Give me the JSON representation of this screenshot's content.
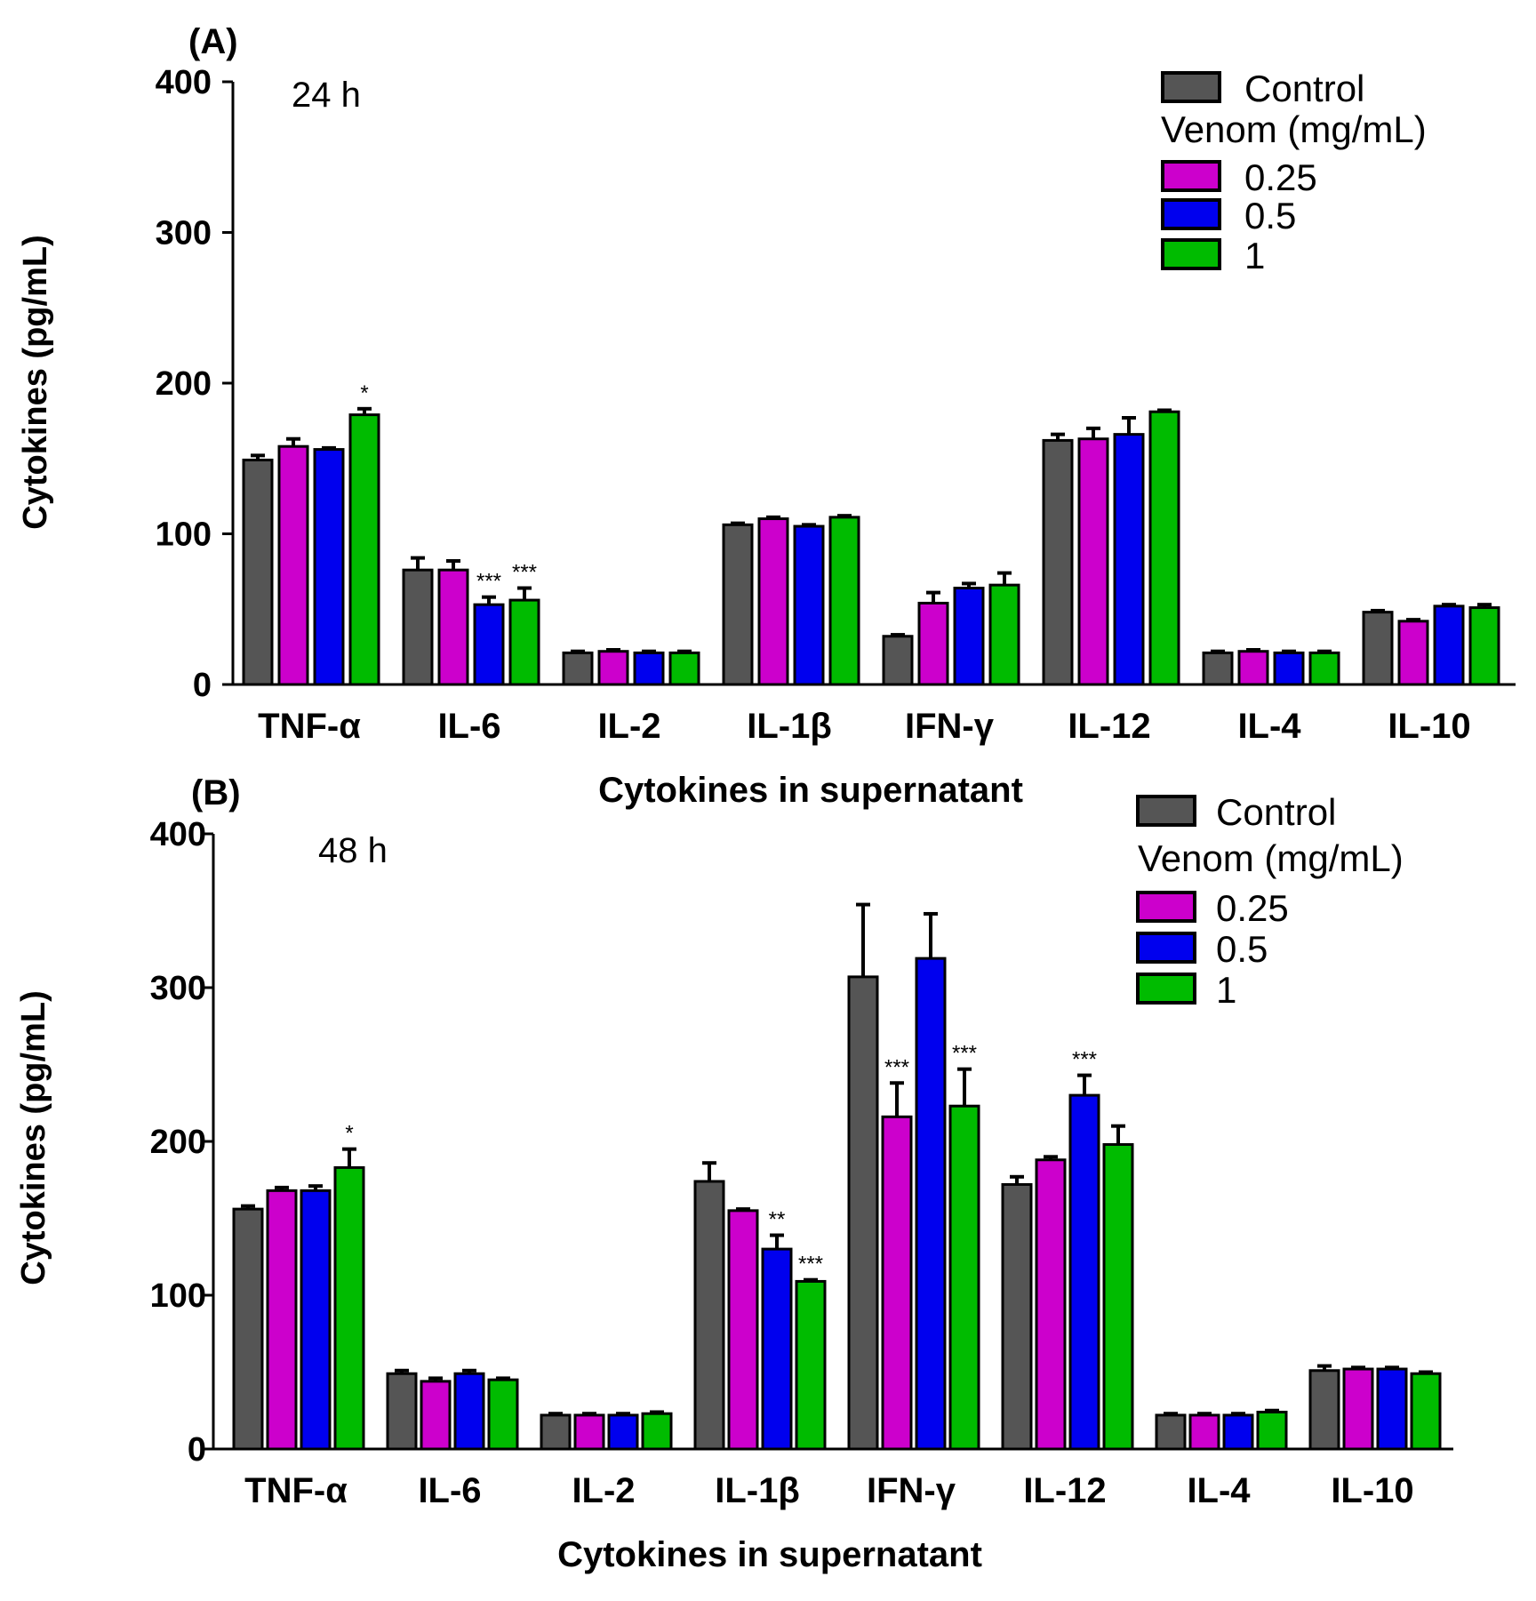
{
  "chart_data": [
    {
      "type": "bar",
      "panel_label": "(A)",
      "time_label": "24 h",
      "xlabel": "Cytokines in supernatant",
      "ylabel": "Cytokines (pg/mL)",
      "ylim": [
        0,
        400
      ],
      "yticks": [
        "0",
        "100",
        "200",
        "300",
        "400"
      ],
      "categories": [
        "TNF-α",
        "IL-6",
        "IL-2",
        "IL-1β",
        "IFN-γ",
        "IL-12",
        "IL-4",
        "IL-10"
      ],
      "series": [
        {
          "name": "Control",
          "color": "#555555",
          "values": [
            149,
            76,
            21,
            106,
            32,
            162,
            21,
            48
          ],
          "errors": [
            3,
            8,
            1,
            1,
            1,
            4,
            1,
            1
          ]
        },
        {
          "name": "0.25",
          "color": "#cc00cc",
          "values": [
            158,
            76,
            22,
            110,
            54,
            163,
            22,
            42
          ],
          "errors": [
            5,
            6,
            1,
            1,
            7,
            7,
            1,
            1
          ]
        },
        {
          "name": "0.5",
          "color": "#0000ee",
          "values": [
            156,
            53,
            21,
            105,
            64,
            166,
            21,
            52
          ],
          "errors": [
            1,
            5,
            1,
            1,
            3,
            11,
            1,
            1
          ]
        },
        {
          "name": "1",
          "color": "#00bb00",
          "values": [
            179,
            56,
            21,
            111,
            66,
            181,
            21,
            51
          ],
          "errors": [
            4,
            8,
            1,
            1,
            8,
            1,
            1,
            2
          ]
        }
      ],
      "significance": [
        {
          "category": "TNF-α",
          "series": "1",
          "mark": "*"
        },
        {
          "category": "IL-6",
          "series": "0.5",
          "mark": "***"
        },
        {
          "category": "IL-6",
          "series": "1",
          "mark": "***"
        }
      ],
      "legend": {
        "control": "Control",
        "group_title": "Venom (mg/mL)",
        "items": [
          "0.25",
          "0.5",
          "1"
        ],
        "position": "top-right"
      }
    },
    {
      "type": "bar",
      "panel_label": "(B)",
      "time_label": "48 h",
      "xlabel": "Cytokines in supernatant",
      "ylabel": "Cytokines (pg/mL)",
      "ylim": [
        0,
        400
      ],
      "yticks": [
        "0",
        "100",
        "200",
        "300",
        "400"
      ],
      "categories": [
        "TNF-α",
        "IL-6",
        "IL-2",
        "IL-1β",
        "IFN-γ",
        "IL-12",
        "IL-4",
        "IL-10"
      ],
      "series": [
        {
          "name": "Control",
          "color": "#555555",
          "values": [
            156,
            49,
            22,
            174,
            307,
            172,
            22,
            51
          ],
          "errors": [
            2,
            2,
            1,
            12,
            47,
            5,
            1,
            3
          ]
        },
        {
          "name": "0.25",
          "color": "#cc00cc",
          "values": [
            168,
            44,
            22,
            155,
            216,
            188,
            22,
            52
          ],
          "errors": [
            2,
            2,
            1,
            1,
            22,
            2,
            1,
            1
          ]
        },
        {
          "name": "0.5",
          "color": "#0000ee",
          "values": [
            168,
            49,
            22,
            130,
            319,
            230,
            22,
            52
          ],
          "errors": [
            3,
            2,
            1,
            9,
            29,
            13,
            1,
            1
          ]
        },
        {
          "name": "1",
          "color": "#00bb00",
          "values": [
            183,
            45,
            23,
            109,
            223,
            198,
            24,
            49
          ],
          "errors": [
            12,
            1,
            1,
            1,
            24,
            12,
            1,
            1
          ]
        }
      ],
      "significance": [
        {
          "category": "TNF-α",
          "series": "1",
          "mark": "*"
        },
        {
          "category": "IL-1β",
          "series": "0.5",
          "mark": "**"
        },
        {
          "category": "IL-1β",
          "series": "1",
          "mark": "***"
        },
        {
          "category": "IFN-γ",
          "series": "0.25",
          "mark": "***"
        },
        {
          "category": "IFN-γ",
          "series": "1",
          "mark": "***"
        },
        {
          "category": "IL-12",
          "series": "0.5",
          "mark": "***"
        }
      ],
      "legend": {
        "control": "Control",
        "group_title": "Venom (mg/mL)",
        "items": [
          "0.25",
          "0.5",
          "1"
        ],
        "position": "top-right"
      }
    }
  ]
}
